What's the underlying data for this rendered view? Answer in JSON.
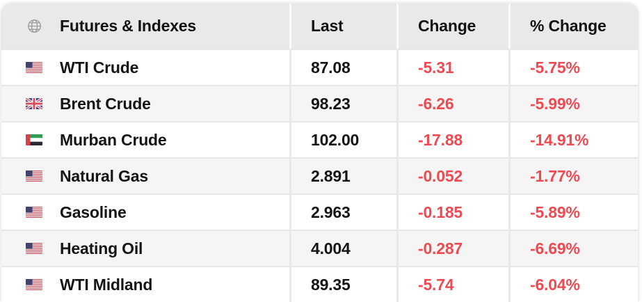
{
  "colors": {
    "negative_text": "#ee4a52",
    "header_bg": "#e9e9e9",
    "row_alt_bg": "#f5f5f5",
    "primary_text": "#151515"
  },
  "icons": {
    "header_icon": "globe-icon",
    "flags_used": [
      "us-flag",
      "gb-flag",
      "ae-flag"
    ]
  },
  "table": {
    "title": "Futures & Indexes",
    "columns": {
      "last": "Last",
      "change": "Change",
      "pct_change": "% Change"
    },
    "rows": [
      {
        "flag": "us",
        "name": "WTI Crude",
        "last": "87.08",
        "change": "-5.31",
        "pct_change": "-5.75%"
      },
      {
        "flag": "gb",
        "name": "Brent Crude",
        "last": "98.23",
        "change": "-6.26",
        "pct_change": "-5.99%"
      },
      {
        "flag": "ae",
        "name": "Murban Crude",
        "last": "102.00",
        "change": "-17.88",
        "pct_change": "-14.91%"
      },
      {
        "flag": "us",
        "name": "Natural Gas",
        "last": "2.891",
        "change": "-0.052",
        "pct_change": "-1.77%"
      },
      {
        "flag": "us",
        "name": "Gasoline",
        "last": "2.963",
        "change": "-0.185",
        "pct_change": "-5.89%"
      },
      {
        "flag": "us",
        "name": "Heating Oil",
        "last": "4.004",
        "change": "-0.287",
        "pct_change": "-6.69%"
      },
      {
        "flag": "us",
        "name": "WTI Midland",
        "last": "89.35",
        "change": "-5.74",
        "pct_change": "-6.04%"
      }
    ]
  }
}
